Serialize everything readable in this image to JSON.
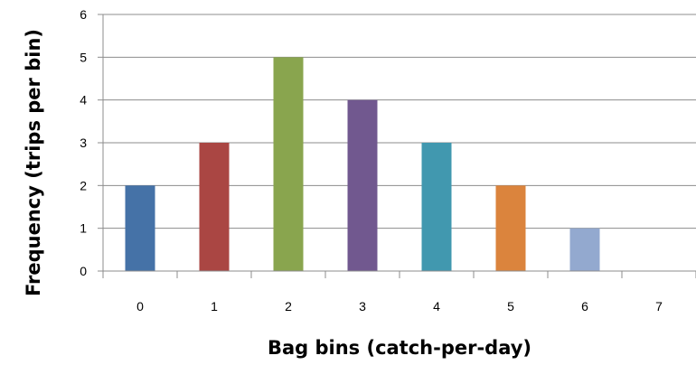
{
  "chart_data": {
    "type": "bar",
    "categories": [
      "0",
      "1",
      "2",
      "3",
      "4",
      "5",
      "6",
      "7"
    ],
    "values": [
      2,
      3,
      5,
      4,
      3,
      2,
      1,
      0
    ],
    "colors": [
      "#4572a7",
      "#aa4643",
      "#89a54e",
      "#71588f",
      "#4198af",
      "#db843d",
      "#93a9cf",
      "#d19392"
    ],
    "xlabel": "Bag bins (catch-per-day)",
    "ylabel": "Frequency (trips per bin)",
    "ylim": [
      0,
      6
    ],
    "yticks": [
      "0",
      "1",
      "2",
      "3",
      "4",
      "5",
      "6"
    ],
    "grid": true,
    "legend": "none"
  }
}
